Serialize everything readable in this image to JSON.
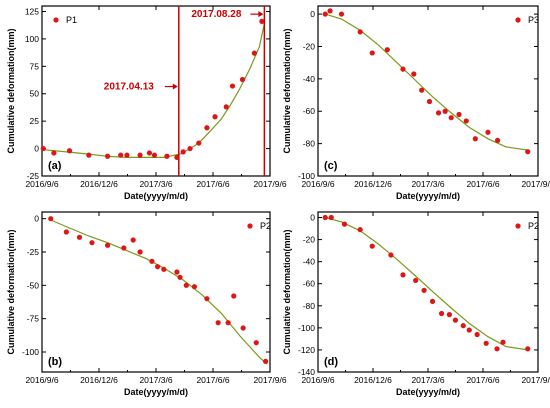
{
  "chart_data": [
    {
      "type": "scatter",
      "panel_label": "(a)",
      "xlabel": "Date(yyyy/m/d)",
      "ylabel": "Cumulative deformation(mm)",
      "xticks": [
        "2016/9/6",
        "2016/12/6",
        "2017/3/6",
        "2017/6/6",
        "2017/9/6"
      ],
      "xlim": [
        "2016-09-06",
        "2017-09-06"
      ],
      "yticks": [
        -25,
        0,
        25,
        50,
        75,
        100,
        125
      ],
      "ylim": [
        -25,
        130
      ],
      "legend": "top-left",
      "colors": {
        "points": "#e01515",
        "fit": "#7a9a1a",
        "annotation": "#cc0000"
      },
      "series": [
        {
          "name": "P1",
          "kind": "points",
          "x": [
            "2016-09-08",
            "2016-09-25",
            "2016-10-20",
            "2016-11-20",
            "2016-12-20",
            "2017-01-10",
            "2017-01-20",
            "2017-02-10",
            "2017-02-25",
            "2017-03-05",
            "2017-03-25",
            "2017-04-10",
            "2017-04-20",
            "2017-05-01",
            "2017-05-15",
            "2017-05-28",
            "2017-06-10",
            "2017-06-28",
            "2017-07-08",
            "2017-07-24",
            "2017-08-12",
            "2017-08-24"
          ],
          "y": [
            0,
            -4,
            -2,
            -6,
            -7,
            -6,
            -6,
            -6,
            -4,
            -6,
            -7,
            -8,
            -3,
            0,
            5,
            19,
            29,
            38,
            57,
            63,
            87,
            116
          ]
        },
        {
          "kind": "fit",
          "x": [
            "2016-09-08",
            "2016-10-15",
            "2016-11-20",
            "2016-12-20",
            "2017-01-20",
            "2017-02-20",
            "2017-03-20",
            "2017-04-15",
            "2017-05-01",
            "2017-05-15",
            "2017-06-01",
            "2017-06-20",
            "2017-07-05",
            "2017-07-20",
            "2017-08-05",
            "2017-08-20",
            "2017-08-28"
          ],
          "y": [
            -1,
            -3,
            -5,
            -7,
            -8,
            -8,
            -8,
            -5,
            0,
            5,
            15,
            27,
            40,
            55,
            73,
            93,
            114
          ]
        }
      ],
      "annotations": [
        {
          "text": "2017.04.13",
          "date": "2017-04-13"
        },
        {
          "text": "2017.08.28",
          "date": "2017-08-28"
        }
      ]
    },
    {
      "type": "scatter",
      "panel_label": "(b)",
      "xlabel": "Date(yyyy/m/d)",
      "ylabel": "Cumulative deformation(mm)",
      "xticks": [
        "2016/9/6",
        "2016/12/6",
        "2017/3/6",
        "2017/6/6",
        "2017/9/6"
      ],
      "xlim": [
        "2016-09-06",
        "2017-09-06"
      ],
      "yticks": [
        -100,
        -75,
        -50,
        -25,
        0
      ],
      "ylim": [
        -115,
        5
      ],
      "legend": "top-right",
      "colors": {
        "points": "#e01515",
        "fit": "#7a9a1a"
      },
      "series": [
        {
          "name": "P2",
          "kind": "points",
          "x": [
            "2016-09-20",
            "2016-10-15",
            "2016-11-05",
            "2016-11-25",
            "2016-12-20",
            "2017-01-15",
            "2017-01-30",
            "2017-02-10",
            "2017-03-01",
            "2017-03-10",
            "2017-03-20",
            "2017-04-10",
            "2017-04-15",
            "2017-04-25",
            "2017-05-08",
            "2017-05-28",
            "2017-06-15",
            "2017-07-01",
            "2017-07-10",
            "2017-07-25",
            "2017-08-15",
            "2017-08-30"
          ],
          "y": [
            0,
            -10,
            -14,
            -18,
            -20,
            -22,
            -16,
            -25,
            -32,
            -36,
            -38,
            -40,
            -44,
            -50,
            -51,
            -60,
            -78,
            -78,
            -58,
            -82,
            -93,
            -107
          ]
        },
        {
          "kind": "fit",
          "x": [
            "2016-09-20",
            "2016-10-20",
            "2016-11-20",
            "2016-12-20",
            "2017-01-20",
            "2017-02-20",
            "2017-03-20",
            "2017-04-20",
            "2017-05-20",
            "2017-06-20",
            "2017-07-20",
            "2017-08-20",
            "2017-09-01"
          ],
          "y": [
            -1,
            -7,
            -13,
            -18,
            -24,
            -30,
            -37,
            -46,
            -57,
            -71,
            -88,
            -104,
            -109
          ]
        }
      ]
    },
    {
      "type": "scatter",
      "panel_label": "(c)",
      "xlabel": "Date(yyyy/m/d)",
      "ylabel": "Cumulative deformation(mm)",
      "xticks": [
        "2016/9/6",
        "2016/12/6",
        "2017/3/6",
        "2017/6/6",
        "2017/9/6"
      ],
      "xlim": [
        "2016-09-06",
        "2017-09-06"
      ],
      "yticks": [
        -100,
        -80,
        -60,
        -40,
        -20,
        0
      ],
      "ylim": [
        -100,
        5
      ],
      "legend": "top-right",
      "colors": {
        "points": "#e01515",
        "fit": "#7a9a1a"
      },
      "series": [
        {
          "name": "P3",
          "kind": "points",
          "x": [
            "2016-09-18",
            "2016-09-26",
            "2016-10-15",
            "2016-11-15",
            "2016-12-05",
            "2016-12-30",
            "2017-01-25",
            "2017-02-12",
            "2017-02-25",
            "2017-03-10",
            "2017-03-25",
            "2017-04-05",
            "2017-04-15",
            "2017-04-28",
            "2017-05-10",
            "2017-05-25",
            "2017-06-15",
            "2017-07-01",
            "2017-08-20"
          ],
          "y": [
            0,
            2,
            0,
            -11,
            -24,
            -22,
            -34,
            -37,
            -47,
            -54,
            -61,
            -60,
            -64,
            -62,
            -66,
            -77,
            -73,
            -78,
            -85
          ]
        },
        {
          "kind": "fit",
          "x": [
            "2016-09-18",
            "2016-10-15",
            "2016-11-15",
            "2016-12-15",
            "2017-01-15",
            "2017-02-15",
            "2017-03-15",
            "2017-04-15",
            "2017-05-15",
            "2017-06-15",
            "2017-07-15",
            "2017-08-20"
          ],
          "y": [
            0,
            -3,
            -10,
            -19,
            -30,
            -41,
            -51,
            -61,
            -70,
            -77,
            -82,
            -84
          ]
        }
      ]
    },
    {
      "type": "scatter",
      "panel_label": "(d)",
      "xlabel": "Date(yyyy/m/d)",
      "ylabel": "Cumulative deformation(mm)",
      "xticks": [
        "2016/9/6",
        "2016/12/6",
        "2017/3/6",
        "2017/6/6",
        "2017/9/6"
      ],
      "xlim": [
        "2016-09-06",
        "2017-09-06"
      ],
      "yticks": [
        -140,
        -120,
        -100,
        -80,
        -60,
        -40,
        -20,
        0
      ],
      "ylim": [
        -140,
        5
      ],
      "legend": "top-right",
      "colors": {
        "points": "#e01515",
        "fit": "#7a9a1a"
      },
      "series": [
        {
          "name": "P2",
          "kind": "points",
          "x": [
            "2016-09-18",
            "2016-09-28",
            "2016-10-20",
            "2016-11-15",
            "2016-12-05",
            "2017-01-05",
            "2017-01-25",
            "2017-02-15",
            "2017-03-01",
            "2017-03-15",
            "2017-03-30",
            "2017-04-12",
            "2017-04-22",
            "2017-05-05",
            "2017-05-15",
            "2017-05-28",
            "2017-06-12",
            "2017-06-30",
            "2017-07-10",
            "2017-08-20"
          ],
          "y": [
            0,
            0,
            -6,
            -11,
            -26,
            -34,
            -52,
            -57,
            -66,
            -76,
            -87,
            -88,
            -93,
            -98,
            -102,
            -106,
            -114,
            -119,
            -113,
            -119
          ]
        },
        {
          "kind": "fit",
          "x": [
            "2016-09-18",
            "2016-10-15",
            "2016-11-15",
            "2016-12-15",
            "2017-01-15",
            "2017-02-15",
            "2017-03-15",
            "2017-04-15",
            "2017-05-15",
            "2017-06-15",
            "2017-07-15",
            "2017-08-20"
          ],
          "y": [
            0,
            -4,
            -12,
            -24,
            -38,
            -53,
            -67,
            -82,
            -96,
            -108,
            -117,
            -120
          ]
        }
      ]
    }
  ]
}
